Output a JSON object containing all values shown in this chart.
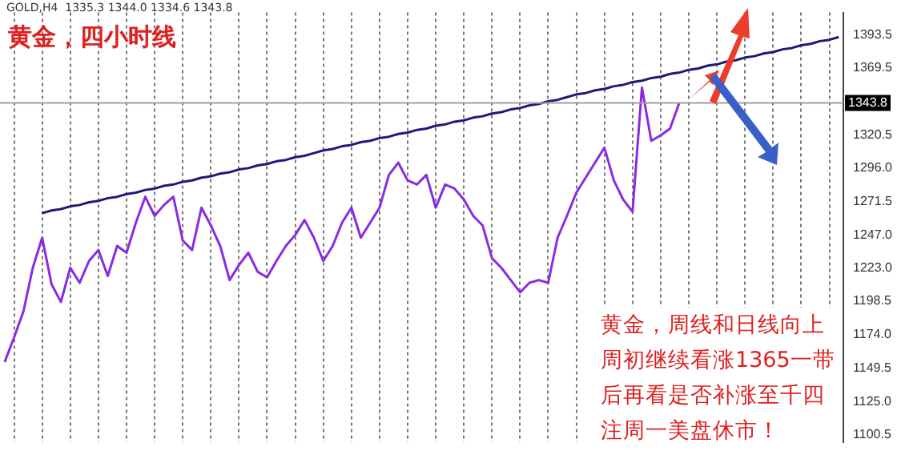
{
  "chart_data": {
    "type": "line",
    "title": "黄金，四小时线",
    "annotations": [
      "GOLD,H4  1335.3 1344.0 1334.6 1343.8",
      "黄金，周线和日线向上",
      "周初继续看涨1365一带",
      "后再看是否补涨至千四",
      "注周一美盘休市！"
    ],
    "categories": [
      null,
      null,
      null,
      null,
      null,
      null,
      null,
      null,
      null,
      null,
      null,
      null,
      null,
      null,
      null,
      null,
      null,
      null,
      null,
      null,
      null,
      null,
      null,
      null,
      null,
      null,
      null,
      null,
      null,
      null,
      null,
      null,
      null,
      null,
      null,
      null,
      null,
      null,
      null,
      null,
      null,
      null,
      null,
      null,
      null,
      null,
      null,
      null,
      null,
      null,
      null,
      null,
      null,
      null,
      null,
      null,
      null,
      null,
      null,
      null,
      null,
      null,
      null,
      null,
      null,
      null,
      null,
      null,
      null,
      null,
      null,
      null,
      null,
      null,
      null,
      null,
      null,
      null,
      null,
      null,
      null,
      null,
      null,
      null,
      null,
      null,
      null,
      null,
      null,
      null
    ],
    "series": [
      {
        "color": "#8a2be2",
        "values": [
          1154,
          1172,
          1191,
          1223,
          1245,
          1211,
          1198,
          1223,
          1212,
          1228,
          1236,
          1217,
          1239,
          1234,
          1256,
          1275,
          1261,
          1269,
          1275,
          1243,
          1236,
          1267,
          1254,
          1239,
          1214,
          1225,
          1234,
          1220,
          1216,
          1228,
          1239,
          1247,
          1258,
          1245,
          1228,
          1239,
          1256,
          1267,
          1245,
          1256,
          1267,
          1291,
          1300,
          1287,
          1284,
          1291,
          1267,
          1284,
          1281,
          1273,
          1261,
          1254,
          1230,
          1223,
          1214,
          1205,
          1212,
          1214,
          1212,
          1245,
          1261,
          1278,
          1289,
          1300,
          1311,
          1287,
          1273,
          1264,
          1355,
          1316,
          1320,
          1325,
          1344,
          null,
          null,
          null,
          null,
          null,
          null,
          null,
          null,
          null,
          null,
          null,
          null,
          null,
          null,
          null,
          null,
          null
        ]
      },
      {
        "type": "line",
        "color": "#1c1c78",
        "values": [
          null,
          null,
          null,
          null,
          1263,
          1265,
          1266,
          1268,
          1269,
          1271,
          1272,
          1274,
          1275,
          1277,
          1278,
          1280,
          1281,
          1283,
          1284,
          1286,
          1287,
          1289,
          1290,
          1292,
          1293,
          1295,
          1296,
          1298,
          1299,
          1301,
          1302,
          1304,
          1305,
          1307,
          1309,
          1310,
          1312,
          1313,
          1315,
          1316,
          1318,
          1319,
          1321,
          1322,
          1324,
          1325,
          1327,
          1328,
          1330,
          1331,
          1333,
          1334,
          1336,
          1337,
          1339,
          1340,
          1342,
          1343,
          1345,
          1346,
          1348,
          1350,
          1351,
          1353,
          1354,
          1356,
          1357,
          1359,
          1360,
          1362,
          1363,
          1365,
          1366,
          1368,
          1369,
          1371,
          1372,
          1374,
          1375,
          1377,
          1378,
          1380,
          1381,
          1383,
          1384,
          1386,
          1387,
          1389,
          1390,
          1392
        ]
      }
    ],
    "ylim": [
      1095,
      1410
    ],
    "yticks": [
      1393.5,
      1369.5,
      1320.5,
      {
        "value": 1296,
        "label": "1296.0"
      },
      1271.5,
      {
        "value": 1247,
        "label": "1247.0"
      },
      {
        "value": 1223,
        "label": "1223.0"
      },
      1198.5,
      {
        "value": 1174,
        "label": "1174.0"
      },
      1149.5,
      {
        "value": 1125,
        "label": "1125.0"
      },
      1100.5
    ],
    "ref_lines": [
      {
        "axis": "y",
        "value": 1343.8,
        "label": "1343.8",
        "color": "#a0a0a0"
      }
    ],
    "grid": "x",
    "legend": false,
    "tick_labels": "y",
    "marker": "none",
    "line_style": "solid"
  }
}
